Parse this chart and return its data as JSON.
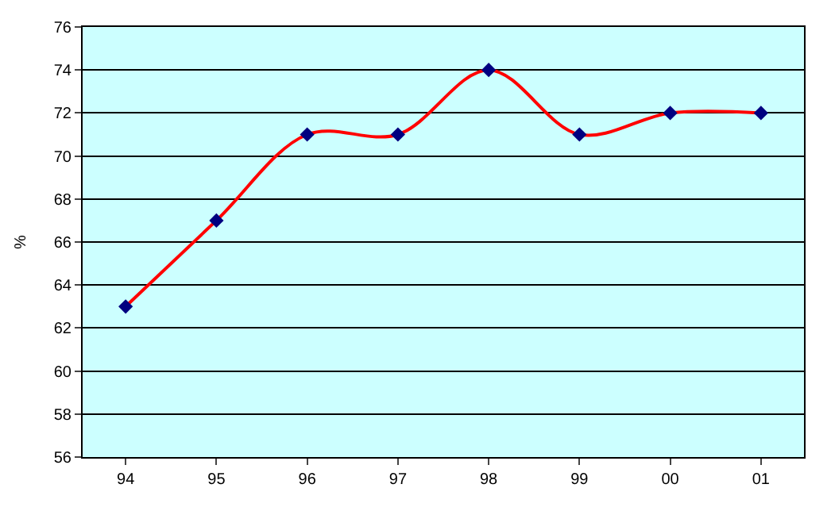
{
  "chart_data": {
    "type": "line",
    "ylabel": "%",
    "categories": [
      "94",
      "95",
      "96",
      "97",
      "98",
      "99",
      "00",
      "01"
    ],
    "series": [
      {
        "color": "#ff0000",
        "colors": [
          "#000080",
          "#000080",
          "#000080",
          "#000080",
          "#000080",
          "#000080",
          "#000080",
          "#000080"
        ],
        "values": [
          63,
          67,
          71,
          71,
          74,
          71,
          72,
          72
        ]
      }
    ],
    "ylim": [
      56,
      76
    ],
    "yticks": [
      56,
      58,
      60,
      62,
      64,
      66,
      68,
      70,
      72,
      74,
      76
    ],
    "grid": "y",
    "marker": "diamond",
    "line_style": "solid",
    "legend": false
  }
}
